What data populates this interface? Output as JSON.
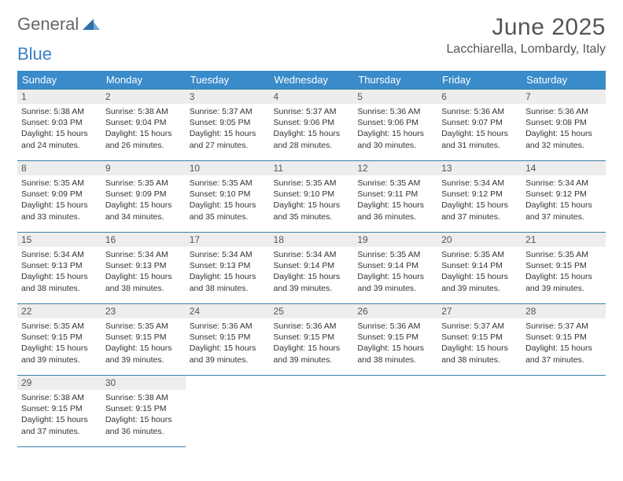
{
  "logo": {
    "part1": "General",
    "part2": "Blue"
  },
  "title": "June 2025",
  "location": "Lacchiarella, Lombardy, Italy",
  "colors": {
    "header_bg": "#3a8bca",
    "header_fg": "#ffffff",
    "daynum_bg": "#ededed",
    "rule": "#3a7fa8",
    "title_color": "#555555",
    "text_color": "#333333",
    "logo_accent": "#3a7fc4"
  },
  "fonts": {
    "title_size": 30,
    "location_size": 16,
    "weekday_size": 13,
    "daynum_size": 12,
    "body_size": 10.5
  },
  "weekday_labels": [
    "Sunday",
    "Monday",
    "Tuesday",
    "Wednesday",
    "Thursday",
    "Friday",
    "Saturday"
  ],
  "days": [
    {
      "n": 1,
      "sr": "5:38 AM",
      "ss": "9:03 PM",
      "dl": "15 hours and 24 minutes."
    },
    {
      "n": 2,
      "sr": "5:38 AM",
      "ss": "9:04 PM",
      "dl": "15 hours and 26 minutes."
    },
    {
      "n": 3,
      "sr": "5:37 AM",
      "ss": "9:05 PM",
      "dl": "15 hours and 27 minutes."
    },
    {
      "n": 4,
      "sr": "5:37 AM",
      "ss": "9:06 PM",
      "dl": "15 hours and 28 minutes."
    },
    {
      "n": 5,
      "sr": "5:36 AM",
      "ss": "9:06 PM",
      "dl": "15 hours and 30 minutes."
    },
    {
      "n": 6,
      "sr": "5:36 AM",
      "ss": "9:07 PM",
      "dl": "15 hours and 31 minutes."
    },
    {
      "n": 7,
      "sr": "5:36 AM",
      "ss": "9:08 PM",
      "dl": "15 hours and 32 minutes."
    },
    {
      "n": 8,
      "sr": "5:35 AM",
      "ss": "9:09 PM",
      "dl": "15 hours and 33 minutes."
    },
    {
      "n": 9,
      "sr": "5:35 AM",
      "ss": "9:09 PM",
      "dl": "15 hours and 34 minutes."
    },
    {
      "n": 10,
      "sr": "5:35 AM",
      "ss": "9:10 PM",
      "dl": "15 hours and 35 minutes."
    },
    {
      "n": 11,
      "sr": "5:35 AM",
      "ss": "9:10 PM",
      "dl": "15 hours and 35 minutes."
    },
    {
      "n": 12,
      "sr": "5:35 AM",
      "ss": "9:11 PM",
      "dl": "15 hours and 36 minutes."
    },
    {
      "n": 13,
      "sr": "5:34 AM",
      "ss": "9:12 PM",
      "dl": "15 hours and 37 minutes."
    },
    {
      "n": 14,
      "sr": "5:34 AM",
      "ss": "9:12 PM",
      "dl": "15 hours and 37 minutes."
    },
    {
      "n": 15,
      "sr": "5:34 AM",
      "ss": "9:13 PM",
      "dl": "15 hours and 38 minutes."
    },
    {
      "n": 16,
      "sr": "5:34 AM",
      "ss": "9:13 PM",
      "dl": "15 hours and 38 minutes."
    },
    {
      "n": 17,
      "sr": "5:34 AM",
      "ss": "9:13 PM",
      "dl": "15 hours and 38 minutes."
    },
    {
      "n": 18,
      "sr": "5:34 AM",
      "ss": "9:14 PM",
      "dl": "15 hours and 39 minutes."
    },
    {
      "n": 19,
      "sr": "5:35 AM",
      "ss": "9:14 PM",
      "dl": "15 hours and 39 minutes."
    },
    {
      "n": 20,
      "sr": "5:35 AM",
      "ss": "9:14 PM",
      "dl": "15 hours and 39 minutes."
    },
    {
      "n": 21,
      "sr": "5:35 AM",
      "ss": "9:15 PM",
      "dl": "15 hours and 39 minutes."
    },
    {
      "n": 22,
      "sr": "5:35 AM",
      "ss": "9:15 PM",
      "dl": "15 hours and 39 minutes."
    },
    {
      "n": 23,
      "sr": "5:35 AM",
      "ss": "9:15 PM",
      "dl": "15 hours and 39 minutes."
    },
    {
      "n": 24,
      "sr": "5:36 AM",
      "ss": "9:15 PM",
      "dl": "15 hours and 39 minutes."
    },
    {
      "n": 25,
      "sr": "5:36 AM",
      "ss": "9:15 PM",
      "dl": "15 hours and 39 minutes."
    },
    {
      "n": 26,
      "sr": "5:36 AM",
      "ss": "9:15 PM",
      "dl": "15 hours and 38 minutes."
    },
    {
      "n": 27,
      "sr": "5:37 AM",
      "ss": "9:15 PM",
      "dl": "15 hours and 38 minutes."
    },
    {
      "n": 28,
      "sr": "5:37 AM",
      "ss": "9:15 PM",
      "dl": "15 hours and 37 minutes."
    },
    {
      "n": 29,
      "sr": "5:38 AM",
      "ss": "9:15 PM",
      "dl": "15 hours and 37 minutes."
    },
    {
      "n": 30,
      "sr": "5:38 AM",
      "ss": "9:15 PM",
      "dl": "15 hours and 36 minutes."
    }
  ],
  "labels": {
    "sunrise": "Sunrise:",
    "sunset": "Sunset:",
    "daylight": "Daylight:"
  },
  "layout": {
    "cols": 7,
    "rows": 5,
    "first_weekday_index": 0
  }
}
